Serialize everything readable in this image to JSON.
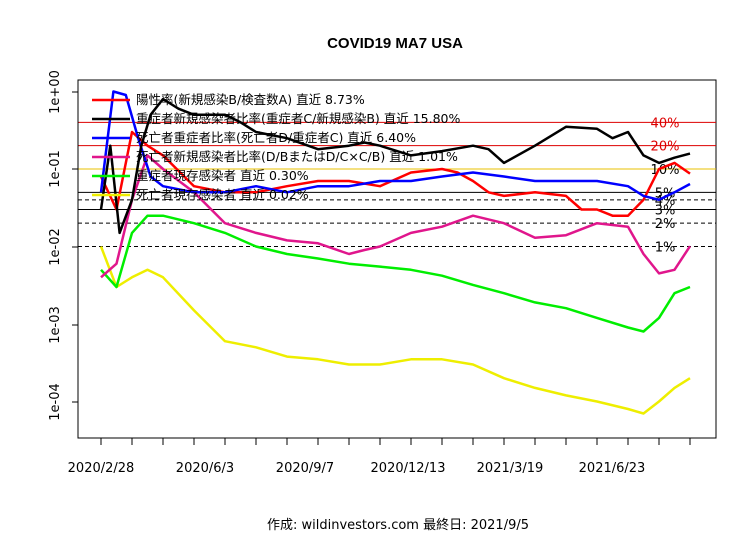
{
  "chart_data": {
    "type": "line",
    "title": "COVID19 MA7 USA",
    "xlabel": "",
    "ylabel": "",
    "y_scale": "log10",
    "ylim": [
      5e-05,
      1.4
    ],
    "x_tick_labels": [
      "2020/2/28",
      "2020/6/3",
      "2020/9/7",
      "2020/12/13",
      "2021/3/19",
      "2021/6/23"
    ],
    "y_tick_labels": [
      "1e-04",
      "1e-03",
      "1e-02",
      "1e-01",
      "1e+00"
    ],
    "y_tick_values": [
      0.0001,
      0.001,
      0.01,
      0.1,
      1
    ],
    "caption": "作成: wildinvestors.com 最終日: 2021/9/5",
    "reference_lines": [
      {
        "label": "40%",
        "value": 0.4,
        "color": "#dd0000",
        "style": "solid"
      },
      {
        "label": "20%",
        "value": 0.2,
        "color": "#dd0000",
        "style": "solid"
      },
      {
        "label": "10%",
        "value": 0.1,
        "color": "#e8c000",
        "style": "solid"
      },
      {
        "label": "5%",
        "value": 0.05,
        "color": "#000000",
        "style": "solid"
      },
      {
        "label": "4%",
        "value": 0.04,
        "color": "#000000",
        "style": "dashed"
      },
      {
        "label": "3%",
        "value": 0.03,
        "color": "#000000",
        "style": "solid"
      },
      {
        "label": "2%",
        "value": 0.02,
        "color": "#000000",
        "style": "dashed"
      },
      {
        "label": "1%",
        "value": 0.01,
        "color": "#000000",
        "style": "dashed"
      }
    ],
    "x_index_range": [
      0,
      19
    ],
    "series": [
      {
        "name": "陽性率(新規感染B/検査数A) 直近 8.73%",
        "color": "#ff0000",
        "x": [
          0,
          0.5,
          1,
          1.5,
          2,
          3,
          4,
          5,
          6,
          7,
          8,
          9,
          10,
          11,
          11.5,
          12,
          12.5,
          13,
          14,
          15,
          15.5,
          16,
          16.5,
          17,
          17.5,
          18,
          18.5,
          19
        ],
        "values": [
          0.08,
          0.03,
          0.3,
          0.2,
          0.15,
          0.06,
          0.05,
          0.05,
          0.06,
          0.07,
          0.07,
          0.06,
          0.09,
          0.1,
          0.09,
          0.07,
          0.05,
          0.045,
          0.05,
          0.045,
          0.03,
          0.03,
          0.025,
          0.025,
          0.04,
          0.1,
          0.12,
          0.0873
        ]
      },
      {
        "name": "重症者新規感染者比率(重症者C/新規感染B) 直近 15.80%",
        "color": "#000000",
        "x": [
          0,
          0.3,
          0.6,
          1,
          1.3,
          1.6,
          2,
          2.5,
          3,
          4,
          4.5,
          5,
          6,
          7,
          8,
          8.5,
          9,
          10,
          11,
          12,
          12.5,
          13,
          14,
          15,
          16,
          16.5,
          17,
          17.5,
          18,
          18.5,
          19
        ],
        "values": [
          0.03,
          0.2,
          0.015,
          0.04,
          0.2,
          0.5,
          0.8,
          0.6,
          0.5,
          0.5,
          0.4,
          0.3,
          0.25,
          0.18,
          0.2,
          0.22,
          0.2,
          0.15,
          0.17,
          0.2,
          0.18,
          0.12,
          0.2,
          0.35,
          0.33,
          0.25,
          0.3,
          0.15,
          0.12,
          0.14,
          0.158
        ]
      },
      {
        "name": "死亡者重症者比率(死亡者D/重症者C) 直近 6.40%",
        "color": "#0000ff",
        "x": [
          0,
          0.4,
          0.8,
          1.2,
          1.6,
          2,
          3,
          4,
          5,
          6,
          7,
          8,
          9,
          10,
          11,
          12,
          13,
          14,
          15,
          16,
          17,
          17.5,
          18,
          18.5,
          19
        ],
        "values": [
          0.05,
          1.0,
          0.9,
          0.25,
          0.08,
          0.06,
          0.05,
          0.05,
          0.06,
          0.05,
          0.06,
          0.06,
          0.07,
          0.07,
          0.08,
          0.09,
          0.08,
          0.07,
          0.07,
          0.07,
          0.06,
          0.045,
          0.04,
          0.05,
          0.064
        ]
      },
      {
        "name": "死亡者新規感染者比率(D/BまたはD/C×C/B) 直近 1.01%",
        "color": "#e0168c",
        "x": [
          0,
          0.5,
          1,
          1.5,
          2,
          3,
          4,
          5,
          6,
          7,
          8,
          8.5,
          9,
          10,
          11,
          12,
          13,
          14,
          15,
          16,
          17,
          17.5,
          18,
          18.5,
          19
        ],
        "values": [
          0.004,
          0.006,
          0.04,
          0.15,
          0.1,
          0.05,
          0.02,
          0.015,
          0.012,
          0.011,
          0.008,
          0.009,
          0.01,
          0.015,
          0.018,
          0.025,
          0.02,
          0.013,
          0.014,
          0.02,
          0.018,
          0.008,
          0.0045,
          0.005,
          0.0101
        ]
      },
      {
        "name": "重症者現存感染者 直近 0.30%",
        "color": "#00ee00",
        "x": [
          0,
          0.5,
          1,
          1.5,
          2,
          3,
          4,
          5,
          6,
          7,
          8,
          9,
          10,
          11,
          12,
          13,
          14,
          15,
          16,
          17,
          17.5,
          18,
          18.5,
          19
        ],
        "values": [
          0.005,
          0.003,
          0.015,
          0.025,
          0.025,
          0.02,
          0.015,
          0.01,
          0.008,
          0.007,
          0.006,
          0.0055,
          0.005,
          0.0042,
          0.0032,
          0.0025,
          0.0019,
          0.0016,
          0.0012,
          0.0009,
          0.0008,
          0.0012,
          0.0025,
          0.003
        ]
      },
      {
        "name": "死亡者現存感染者 直近 0.02%",
        "color": "#eeee00",
        "x": [
          0,
          0.5,
          1,
          1.5,
          2,
          3,
          4,
          5,
          6,
          7,
          8,
          9,
          10,
          11,
          12,
          13,
          14,
          15,
          16,
          17,
          17.5,
          18,
          18.5,
          19
        ],
        "values": [
          0.01,
          0.003,
          0.004,
          0.005,
          0.004,
          0.0015,
          0.0006,
          0.0005,
          0.00038,
          0.00035,
          0.0003,
          0.0003,
          0.00035,
          0.00035,
          0.0003,
          0.0002,
          0.00015,
          0.00012,
          0.0001,
          8e-05,
          7e-05,
          0.0001,
          0.00015,
          0.0002
        ]
      }
    ]
  }
}
